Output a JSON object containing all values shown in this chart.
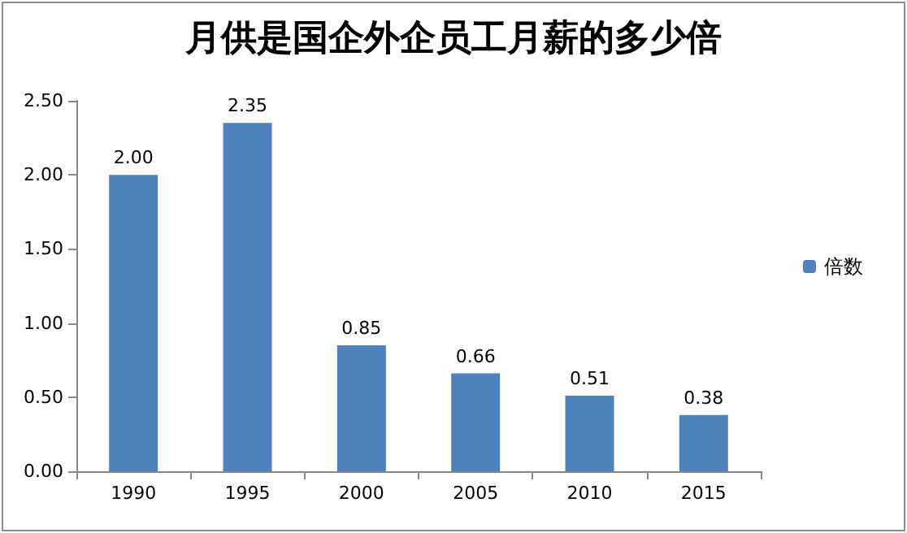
{
  "chart_data": {
    "type": "bar",
    "title": "月供是国企外企员工月薪的多少倍",
    "categories": [
      "1990",
      "1995",
      "2000",
      "2005",
      "2010",
      "2015"
    ],
    "series": [
      {
        "name": "倍数",
        "color": "#4f81bd",
        "values": [
          2.0,
          2.35,
          0.85,
          0.66,
          0.51,
          0.38
        ],
        "value_labels": [
          "2.00",
          "2.35",
          "0.85",
          "0.66",
          "0.51",
          "0.38"
        ]
      }
    ],
    "ylim": [
      0,
      2.5
    ],
    "yticks": [
      {
        "value": 0,
        "label": "0.00"
      },
      {
        "value": 0.5,
        "label": "0.50"
      },
      {
        "value": 1,
        "label": "1.00"
      },
      {
        "value": 1.5,
        "label": "1.50"
      },
      {
        "value": 2,
        "label": "2.00"
      },
      {
        "value": 2.5,
        "label": "2.50"
      }
    ],
    "grid": false,
    "legend": "right"
  }
}
